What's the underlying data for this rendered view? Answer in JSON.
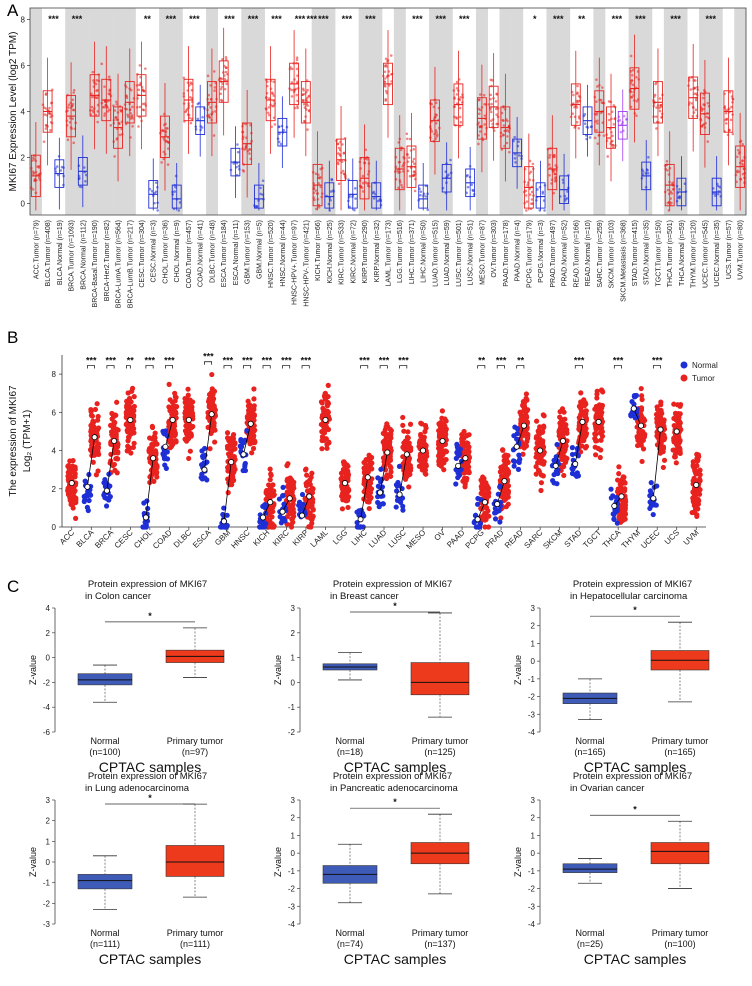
{
  "panels": {
    "a": "A",
    "b": "B",
    "c": "C"
  },
  "colors": {
    "tumor": "#e8231f",
    "normal": "#1f2fd6",
    "metastasis": "#a03cf0",
    "band": "#d9d9d9",
    "cptac_normal": "#3f5bb8",
    "cptac_tumor": "#ee3a1c"
  },
  "chart_data": [
    {
      "id": "panelA",
      "type": "box",
      "ylabel": "MKI67 Expression Level (log2 TPM)",
      "ylim": [
        -0.5,
        8.5
      ],
      "yticks": [
        "0",
        "2",
        "4",
        "6",
        "8"
      ],
      "categories": [
        "ACC.Tumor (n=79)",
        "BLCA.Tumor (n=408)",
        "BLCA.Normal (n=19)",
        "BRCA.Tumor (n=1093)",
        "BRCA.Normal (n=112)",
        "BRCA-Basal.Tumor (n=190)",
        "BRCA-Her2.Tumor (n=82)",
        "BRCA-LumA.Tumor (n=564)",
        "BRCA-LumB.Tumor (n=217)",
        "CESC.Tumor (n=304)",
        "CESC.Normal (n=3)",
        "CHOL.Tumor (n=36)",
        "CHOL.Normal (n=9)",
        "COAD.Tumor (n=457)",
        "COAD.Normal (n=41)",
        "DLBC.Tumor (n=48)",
        "ESCA.Tumor (n=184)",
        "ESCA.Normal (n=11)",
        "GBM.Tumor (n=153)",
        "GBM.Normal (n=5)",
        "HNSC.Tumor (n=520)",
        "HNSC.Normal (n=44)",
        "HNSC-HPV+.Tumor (n=97)",
        "HNSC-HPV-.Tumor (n=421)",
        "KICH.Tumor (n=66)",
        "KICH.Normal (n=25)",
        "KIRC.Tumor (n=533)",
        "KIRC.Normal (n=72)",
        "KIRP.Tumor (n=290)",
        "KIRP.Normal (n=32)",
        "LAML.Tumor (n=173)",
        "LGG.Tumor (n=516)",
        "LIHC.Tumor (n=371)",
        "LIHC.Normal (n=50)",
        "LUAD.Tumor (n=515)",
        "LUAD.Normal (n=59)",
        "LUSC.Tumor (n=501)",
        "LUSC.Normal (n=51)",
        "MESO.Tumor (n=87)",
        "OV.Tumor (n=303)",
        "PAAD.Tumor (n=178)",
        "PAAD.Normal (n=4)",
        "PCPG.Tumor (n=179)",
        "PCPG.Normal (n=3)",
        "PRAD.Tumor (n=497)",
        "PRAD.Normal (n=52)",
        "READ.Tumor (n=166)",
        "READ.Normal (n=10)",
        "SARC.Tumor (n=259)",
        "SKCM.Tumor (n=103)",
        "SKCM.Metastasis (n=368)",
        "STAD.Tumor (n=415)",
        "STAD.Normal (n=35)",
        "TGCT.Tumor (n=150)",
        "THCA.Tumor (n=501)",
        "THCA.Normal (n=59)",
        "THYM.Tumor (n=120)",
        "UCEC.Tumor (n=545)",
        "UCEC.Normal (n=35)",
        "UCS.Tumor (n=57)",
        "UVM.Tumor (n=80)"
      ],
      "kind": [
        "t",
        "t",
        "n",
        "t",
        "n",
        "t",
        "t",
        "t",
        "t",
        "t",
        "n",
        "t",
        "n",
        "t",
        "n",
        "t",
        "t",
        "n",
        "t",
        "n",
        "t",
        "n",
        "t",
        "t",
        "t",
        "n",
        "t",
        "n",
        "t",
        "n",
        "t",
        "t",
        "t",
        "n",
        "t",
        "n",
        "t",
        "n",
        "t",
        "t",
        "t",
        "n",
        "t",
        "n",
        "t",
        "n",
        "t",
        "n",
        "t",
        "t",
        "m",
        "t",
        "n",
        "t",
        "t",
        "n",
        "t",
        "t",
        "n",
        "t",
        "t"
      ],
      "medians": [
        1.2,
        4.0,
        1.3,
        3.8,
        1.4,
        4.7,
        4.5,
        3.3,
        4.4,
        4.7,
        0.4,
        2.9,
        0.2,
        4.5,
        3.6,
        4.4,
        5.3,
        1.8,
        2.6,
        0.2,
        4.5,
        3.1,
        5.2,
        4.4,
        0.8,
        0.3,
        1.9,
        0.4,
        1.1,
        0.3,
        5.2,
        1.5,
        1.6,
        0.2,
        3.6,
        1.1,
        4.3,
        0.9,
        3.7,
        4.2,
        3.3,
        2.2,
        0.7,
        0.3,
        1.5,
        0.6,
        4.3,
        3.6,
        4.0,
        3.3,
        3.4,
        5.0,
        1.2,
        4.4,
        0.8,
        0.5,
        4.6,
        3.9,
        0.5,
        4.0,
        1.6
      ],
      "significance": [
        "",
        "***",
        "",
        "***",
        "",
        "",
        "",
        "",
        "",
        "**",
        "",
        "***",
        "",
        "***",
        "",
        "",
        "***",
        "",
        "***",
        "",
        "***",
        "",
        "***",
        "***",
        "***",
        "",
        "***",
        "",
        "***",
        "",
        "",
        "",
        "***",
        "",
        "***",
        "",
        "***",
        "",
        "",
        "",
        "",
        "",
        "*",
        "",
        "***",
        "",
        "**",
        "",
        "",
        "***",
        "",
        "***",
        "",
        "",
        "***",
        "",
        "",
        "***",
        "",
        "",
        ""
      ]
    },
    {
      "id": "panelB",
      "type": "scatter",
      "ylabel_line1": "The expression of MKI67",
      "ylabel_line2": "Log₂ (TPM+1)",
      "ylim": [
        0,
        9
      ],
      "yticks": [
        "0",
        "2",
        "4",
        "6",
        "8"
      ],
      "legend": {
        "normal": "Normal",
        "tumor": "Tumor",
        "position": "top-right"
      },
      "categories": [
        "ACC",
        "BLCA",
        "BRCA",
        "CESC",
        "CHOL",
        "COAD",
        "DLBC",
        "ESCA",
        "GBM",
        "HNSC",
        "KICH",
        "KIRC",
        "KIRP",
        "LAML",
        "LGG",
        "LIHC",
        "LUAD",
        "LUSC",
        "MESO",
        "OV",
        "PAAD",
        "PCPG",
        "PRAD",
        "READ",
        "SARC",
        "SKCM",
        "STAD",
        "TGCT",
        "THCA",
        "THYM",
        "UCEC",
        "UCS",
        "UVM"
      ],
      "normal_median": [
        null,
        2.1,
        1.9,
        null,
        0.5,
        4.2,
        null,
        3.0,
        0.3,
        3.8,
        0.5,
        0.8,
        0.6,
        null,
        null,
        0.4,
        1.8,
        1.7,
        null,
        null,
        3.2,
        0.4,
        1.2,
        4.2,
        null,
        3.2,
        3.3,
        null,
        1.1,
        6.2,
        1.5,
        null,
        null
      ],
      "tumor_median": [
        2.3,
        4.7,
        4.5,
        5.6,
        3.6,
        5.6,
        5.6,
        5.9,
        3.4,
        5.4,
        1.3,
        1.5,
        1.6,
        5.6,
        2.3,
        2.6,
        3.9,
        3.8,
        4.0,
        4.5,
        3.6,
        1.3,
        2.4,
        5.3,
        4.0,
        4.5,
        5.5,
        5.5,
        1.6,
        5.3,
        5.1,
        5.0,
        2.2
      ],
      "significance": [
        "",
        "***",
        "***",
        "**",
        "***",
        "***",
        "",
        "***",
        "***",
        "***",
        "***",
        "***",
        "***",
        "",
        "",
        "***",
        "***",
        "***",
        "",
        "",
        "",
        "**",
        "***",
        "**",
        "",
        "",
        "***",
        "",
        "***",
        "",
        "***",
        "",
        ""
      ]
    },
    {
      "id": "panelC",
      "type": "box",
      "xlabel": "CPTAC samples",
      "ylabel": "Z-value",
      "plots": [
        {
          "title1": "Protein expression of MKI67",
          "title2": "in Colon cancer",
          "normal_label": "Normal",
          "normal_n": "(n=100)",
          "tumor_label": "Primary tumor",
          "tumor_n": "(n=97)",
          "sig": "*",
          "ylim": [
            -6,
            4
          ],
          "yticks": [
            "4",
            "2",
            "0",
            "-2",
            "-4",
            "-6"
          ],
          "normal_box": {
            "min": -3.6,
            "q1": -2.2,
            "median": -1.8,
            "q3": -1.3,
            "max": -0.6
          },
          "tumor_box": {
            "min": -1.6,
            "q1": -0.4,
            "median": 0.1,
            "q3": 0.6,
            "max": 2.4
          }
        },
        {
          "title1": "Protein expression of MKI67",
          "title2": "in Breast cancer",
          "normal_label": "Normal",
          "normal_n": "(n=18)",
          "tumor_label": "Primary tumor",
          "tumor_n": "(n=125)",
          "sig": "*",
          "ylim": [
            -2,
            3
          ],
          "yticks": [
            "3",
            "2",
            "1",
            "0",
            "-1",
            "-2"
          ],
          "normal_box": {
            "min": 0.1,
            "q1": 0.5,
            "median": 0.62,
            "q3": 0.75,
            "max": 1.2
          },
          "tumor_box": {
            "min": -1.4,
            "q1": -0.5,
            "median": 0.0,
            "q3": 0.8,
            "max": 2.8
          }
        },
        {
          "title1": "Protein expression of MKI67",
          "title2": "in Hepatocellular carcinoma",
          "normal_label": "Normal",
          "normal_n": "(n=165)",
          "tumor_label": "Primary tumor",
          "tumor_n": "(n=165)",
          "sig": "*",
          "ylim": [
            -4,
            3
          ],
          "yticks": [
            "3",
            "2",
            "1",
            "0",
            "-1",
            "-2",
            "-3",
            "-4"
          ],
          "normal_box": {
            "min": -3.3,
            "q1": -2.4,
            "median": -2.1,
            "q3": -1.8,
            "max": -1.0
          },
          "tumor_box": {
            "min": -2.3,
            "q1": -0.5,
            "median": 0.05,
            "q3": 0.6,
            "max": 2.2
          }
        },
        {
          "title1": "Protein expression of MKI67",
          "title2": "in Lung adenocarcinoma",
          "normal_label": "Normal",
          "normal_n": "(n=111)",
          "tumor_label": "Primary tumor",
          "tumor_n": "(n=111)",
          "sig": "*",
          "ylim": [
            -3,
            3
          ],
          "yticks": [
            "3",
            "2",
            "1",
            "0",
            "-1",
            "-2",
            "-3"
          ],
          "normal_box": {
            "min": -2.3,
            "q1": -1.3,
            "median": -0.9,
            "q3": -0.6,
            "max": 0.3
          },
          "tumor_box": {
            "min": -1.7,
            "q1": -0.7,
            "median": 0.0,
            "q3": 0.8,
            "max": 2.8
          }
        },
        {
          "title1": "Protein expression of MKI67",
          "title2": "in Pancreatic adenocarcinoma",
          "normal_label": "Normal",
          "normal_n": "(n=74)",
          "tumor_label": "Primary tumor",
          "tumor_n": "(n=137)",
          "sig": "*",
          "ylim": [
            -4,
            3
          ],
          "yticks": [
            "3",
            "2",
            "1",
            "0",
            "-1",
            "-2",
            "-3",
            "-4"
          ],
          "normal_box": {
            "min": -2.8,
            "q1": -1.7,
            "median": -1.2,
            "q3": -0.7,
            "max": 0.5
          },
          "tumor_box": {
            "min": -2.3,
            "q1": -0.6,
            "median": 0.0,
            "q3": 0.6,
            "max": 2.2
          }
        },
        {
          "title1": "Protein expression of MKI67",
          "title2": "in Ovarian cancer",
          "normal_label": "Normal",
          "normal_n": "(n=25)",
          "tumor_label": "Primary tumor",
          "tumor_n": "(n=100)",
          "sig": "*",
          "ylim": [
            -4,
            3
          ],
          "yticks": [
            "3",
            "2",
            "1",
            "0",
            "-1",
            "-2",
            "-3",
            "-4"
          ],
          "normal_box": {
            "min": -1.7,
            "q1": -1.1,
            "median": -0.9,
            "q3": -0.6,
            "max": -0.3
          },
          "tumor_box": {
            "min": -2.0,
            "q1": -0.6,
            "median": 0.1,
            "q3": 0.6,
            "max": 1.8
          }
        }
      ]
    }
  ]
}
